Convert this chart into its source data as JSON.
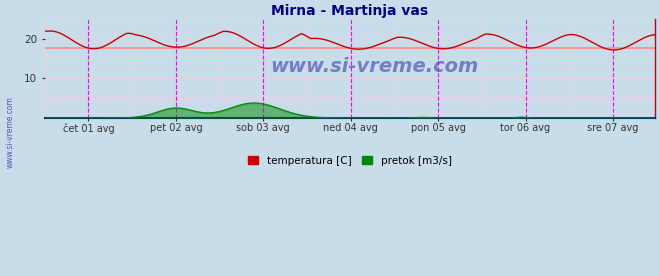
{
  "title": "Mirna - Martinja vas",
  "title_color": "#000080",
  "bg_color": "#c8dcea",
  "plot_bg_color": "#c8dcea",
  "yticks": [
    10,
    20
  ],
  "ylim": [
    0,
    25
  ],
  "xlim": [
    0,
    335
  ],
  "xtick_labels": [
    "čet 01 avg",
    "pet 02 avg",
    "sob 03 avg",
    "ned 04 avg",
    "pon 05 avg",
    "tor 06 avg",
    "sre 07 avg"
  ],
  "xtick_positions": [
    24,
    72,
    120,
    168,
    216,
    264,
    312
  ],
  "temp_color": "#cc0000",
  "flow_color": "#008800",
  "avg_line_color": "#ff8888",
  "avg_line_value": 17.8,
  "grid_minor_color": "#ffcccc",
  "grid_major_color": "#ff8888",
  "vline_color_dashed": "#ff00ff",
  "vline_color_day": "#ff00ff",
  "watermark": "www.si-vreme.com",
  "watermark_color": "#4040aa",
  "legend_temp": "temperatura [C]",
  "legend_flow": "pretok [m3/s]",
  "figsize": [
    6.59,
    2.76
  ],
  "dpi": 100
}
